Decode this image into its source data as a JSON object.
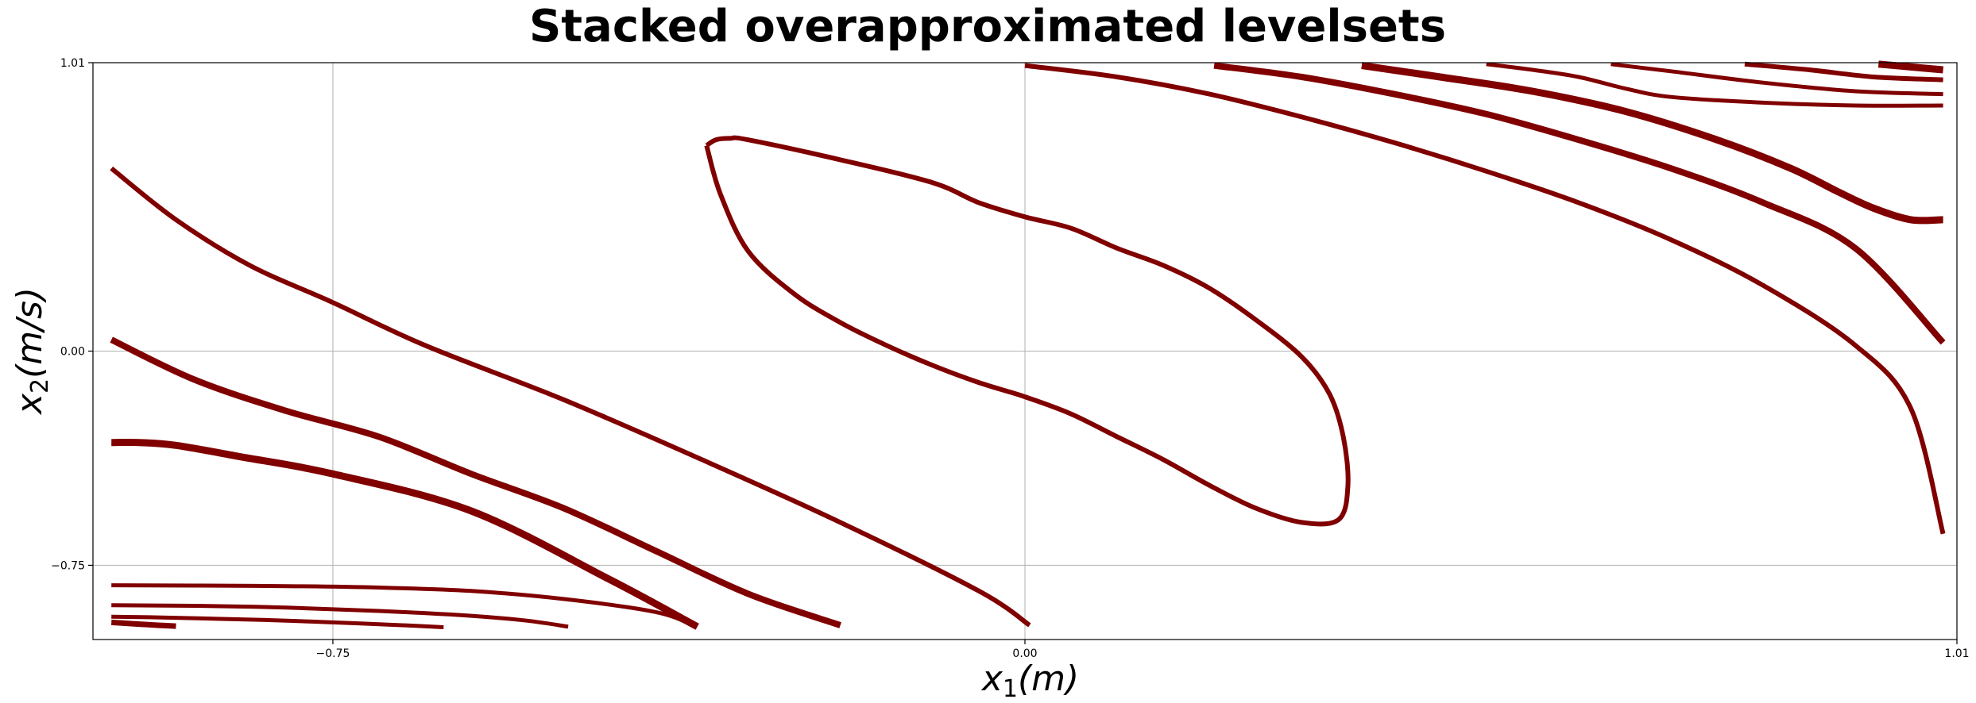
{
  "chart_data": {
    "type": "line",
    "title": "Stacked overapproximated levelsets",
    "xlabel_main": "x",
    "xlabel_sub": "1",
    "xlabel_unit": "(m)",
    "ylabel_main": "x",
    "ylabel_sub": "2",
    "ylabel_unit": "(m/s)",
    "xlim": [
      -1.01,
      1.01
    ],
    "ylim": [
      -1.01,
      1.01
    ],
    "xticks": [
      -0.75,
      0.0,
      1.01
    ],
    "xtick_labels": [
      "−0.75",
      "0.00",
      "1.01"
    ],
    "yticks": [
      -0.75,
      0.0,
      1.01
    ],
    "ytick_labels": [
      "−0.75",
      "0.00",
      "1.01"
    ],
    "grid": true,
    "color": "#800000",
    "series": [
      {
        "width": 7,
        "x": [
          -0.99,
          -0.98,
          -0.96,
          -0.94,
          -0.92
        ],
        "y": [
          -0.95,
          -0.952,
          -0.956,
          -0.96,
          -0.963
        ]
      },
      {
        "width": 5,
        "x": [
          -0.99,
          -0.95,
          -0.88,
          -0.8,
          -0.72,
          -0.66,
          -0.63
        ],
        "y": [
          -0.93,
          -0.932,
          -0.937,
          -0.944,
          -0.954,
          -0.962,
          -0.967
        ]
      },
      {
        "width": 5,
        "x": [
          -0.99,
          -0.9,
          -0.8,
          -0.7,
          -0.6,
          -0.54,
          -0.495
        ],
        "y": [
          -0.89,
          -0.892,
          -0.898,
          -0.91,
          -0.927,
          -0.944,
          -0.965
        ]
      },
      {
        "width": 5,
        "x": [
          -0.99,
          -0.9,
          -0.8,
          -0.7,
          -0.6,
          -0.5,
          -0.4,
          -0.36
        ],
        "y": [
          -0.82,
          -0.821,
          -0.823,
          -0.828,
          -0.84,
          -0.868,
          -0.914,
          -0.96
        ]
      },
      {
        "width": 9,
        "x": [
          -0.99,
          -0.96,
          -0.92,
          -0.85,
          -0.75,
          -0.6,
          -0.45,
          -0.355
        ],
        "y": [
          -0.32,
          -0.32,
          -0.33,
          -0.37,
          -0.43,
          -0.56,
          -0.8,
          -0.965
        ]
      },
      {
        "width": 8,
        "x": [
          -0.99,
          -0.9,
          -0.8,
          -0.7,
          -0.6,
          -0.5,
          -0.4,
          -0.3,
          -0.2
        ],
        "y": [
          0.04,
          -0.1,
          -0.21,
          -0.3,
          -0.43,
          -0.55,
          -0.7,
          -0.85,
          -0.96
        ]
      },
      {
        "width": 6,
        "x": [
          -0.99,
          -0.92,
          -0.84,
          -0.75,
          -0.65,
          -0.5,
          -0.35,
          -0.2,
          -0.05,
          0.005
        ],
        "y": [
          0.64,
          0.46,
          0.3,
          0.17,
          0.02,
          -0.17,
          -0.38,
          -0.6,
          -0.84,
          -0.96
        ]
      },
      {
        "width": 6,
        "x": [
          -0.345,
          -0.335,
          -0.32,
          -0.3,
          -0.2,
          -0.1,
          -0.05,
          0.0,
          0.05,
          0.1,
          0.15,
          0.2,
          0.25,
          0.3,
          0.33,
          0.345,
          0.35,
          0.34,
          0.3,
          0.25,
          0.2,
          0.15,
          0.1,
          0.05,
          0.0,
          -0.05,
          -0.1,
          -0.15,
          -0.2,
          -0.25,
          -0.3,
          -0.33,
          -0.345
        ],
        "y": [
          0.72,
          0.74,
          0.745,
          0.74,
          0.67,
          0.59,
          0.52,
          0.47,
          0.43,
          0.36,
          0.3,
          0.22,
          0.11,
          -0.02,
          -0.15,
          -0.3,
          -0.47,
          -0.59,
          -0.6,
          -0.55,
          -0.47,
          -0.38,
          -0.3,
          -0.22,
          -0.16,
          -0.11,
          -0.05,
          0.02,
          0.1,
          0.2,
          0.35,
          0.55,
          0.72
        ]
      },
      {
        "width": 6,
        "x": [
          0.0,
          0.1,
          0.2,
          0.3,
          0.4,
          0.5,
          0.6,
          0.7,
          0.8,
          0.9,
          0.96,
          0.995
        ],
        "y": [
          1.0,
          0.96,
          0.9,
          0.82,
          0.73,
          0.63,
          0.52,
          0.39,
          0.23,
          0.02,
          -0.2,
          -0.64
        ]
      },
      {
        "width": 8,
        "x": [
          0.205,
          0.3,
          0.4,
          0.5,
          0.6,
          0.7,
          0.8,
          0.9,
          0.995
        ],
        "y": [
          1.0,
          0.96,
          0.9,
          0.83,
          0.74,
          0.64,
          0.52,
          0.36,
          0.03
        ]
      },
      {
        "width": 9,
        "x": [
          0.365,
          0.45,
          0.55,
          0.65,
          0.75,
          0.83,
          0.88,
          0.92,
          0.96,
          0.995
        ],
        "y": [
          1.0,
          0.96,
          0.91,
          0.84,
          0.74,
          0.64,
          0.56,
          0.5,
          0.46,
          0.46
        ]
      },
      {
        "width": 5,
        "x": [
          0.5,
          0.55,
          0.6,
          0.65,
          0.7,
          0.8,
          0.9,
          0.995
        ],
        "y": [
          1.005,
          0.985,
          0.96,
          0.92,
          0.89,
          0.87,
          0.86,
          0.86
        ]
      },
      {
        "width": 5,
        "x": [
          0.635,
          0.7,
          0.8,
          0.9,
          0.995
        ],
        "y": [
          1.005,
          0.98,
          0.94,
          0.91,
          0.9
        ]
      },
      {
        "width": 6,
        "x": [
          0.78,
          0.85,
          0.92,
          0.995
        ],
        "y": [
          1.005,
          0.985,
          0.96,
          0.95
        ]
      },
      {
        "width": 9,
        "x": [
          0.925,
          0.96,
          0.995
        ],
        "y": [
          1.005,
          0.995,
          0.985
        ]
      }
    ]
  }
}
